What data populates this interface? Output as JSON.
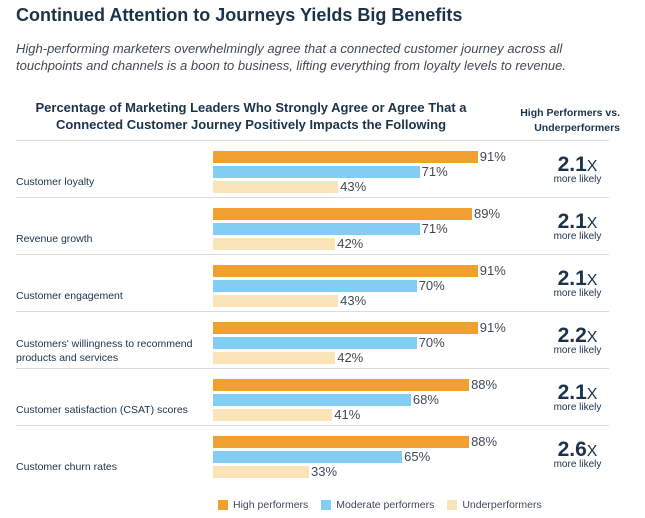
{
  "header": {
    "title": "Continued Attention to Journeys Yields Big Benefits",
    "subtitle": "High-performing marketers overwhelmingly agree that a connected customer journey across all touchpoints and channels is a boon to business, lifting everything from loyalty levels to revenue."
  },
  "chart_data": {
    "type": "bar",
    "orientation": "horizontal",
    "title": "Percentage of Marketing Leaders Who Strongly Agree or Agree That a Connected Customer Journey Positively Impacts the Following",
    "ratio_header": "High Performers vs. Underperformers",
    "categories": [
      "Customer loyalty",
      "Revenue growth",
      "Customer engagement",
      "Customers' willingness to recommend products and services",
      "Customer satisfaction (CSAT) scores",
      "Customer churn rates"
    ],
    "series": [
      {
        "name": "High performers",
        "color": "#f0a030",
        "values": [
          91,
          89,
          91,
          91,
          88,
          88
        ]
      },
      {
        "name": "Moderate performers",
        "color": "#82cdf3",
        "values": [
          71,
          71,
          70,
          70,
          68,
          65
        ]
      },
      {
        "name": "Underperformers",
        "color": "#fbe4b8",
        "values": [
          43,
          42,
          43,
          42,
          41,
          33
        ]
      }
    ],
    "value_suffix": "%",
    "ratios": [
      "2.1",
      "2.1",
      "2.1",
      "2.2",
      "2.1",
      "2.6"
    ],
    "ratio_suffix": "X",
    "ratio_caption": "more likely",
    "xlim": [
      0,
      100
    ],
    "legend_position": "bottom"
  }
}
